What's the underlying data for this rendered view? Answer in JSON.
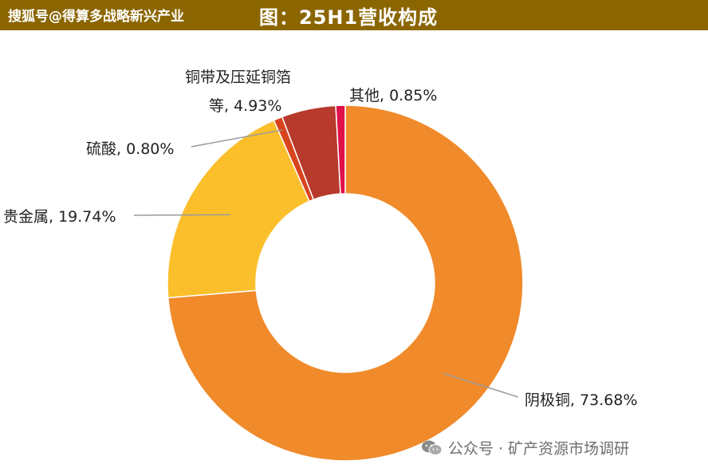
{
  "header": {
    "watermark": "搜狐号@得算多战略新兴产业",
    "title": "图：25H1营收构成"
  },
  "footer": {
    "text": "公众号 · 矿产资源市场调研",
    "icon": "wechat-icon"
  },
  "chart_data": {
    "type": "pie",
    "donut": true,
    "title": "图：25H1营收构成",
    "slices": [
      {
        "name": "阴极铜",
        "value": 73.68,
        "label": "阴极铜, 73.68%",
        "color": "#f08a2a"
      },
      {
        "name": "贵金属",
        "value": 19.74,
        "label": "贵金属, 19.74%",
        "color": "#fbbf2c"
      },
      {
        "name": "硫酸",
        "value": 0.8,
        "label": "硫酸, 0.80%",
        "color": "#d8441e"
      },
      {
        "name": "铜带及压延铜箔等",
        "value": 4.93,
        "label_line1": "铜带及压延铜箔",
        "label_line2": "等, 4.93%",
        "color": "#b83a2c"
      },
      {
        "name": "其他",
        "value": 0.85,
        "label": "其他, 0.85%",
        "color": "#e01048"
      }
    ]
  }
}
